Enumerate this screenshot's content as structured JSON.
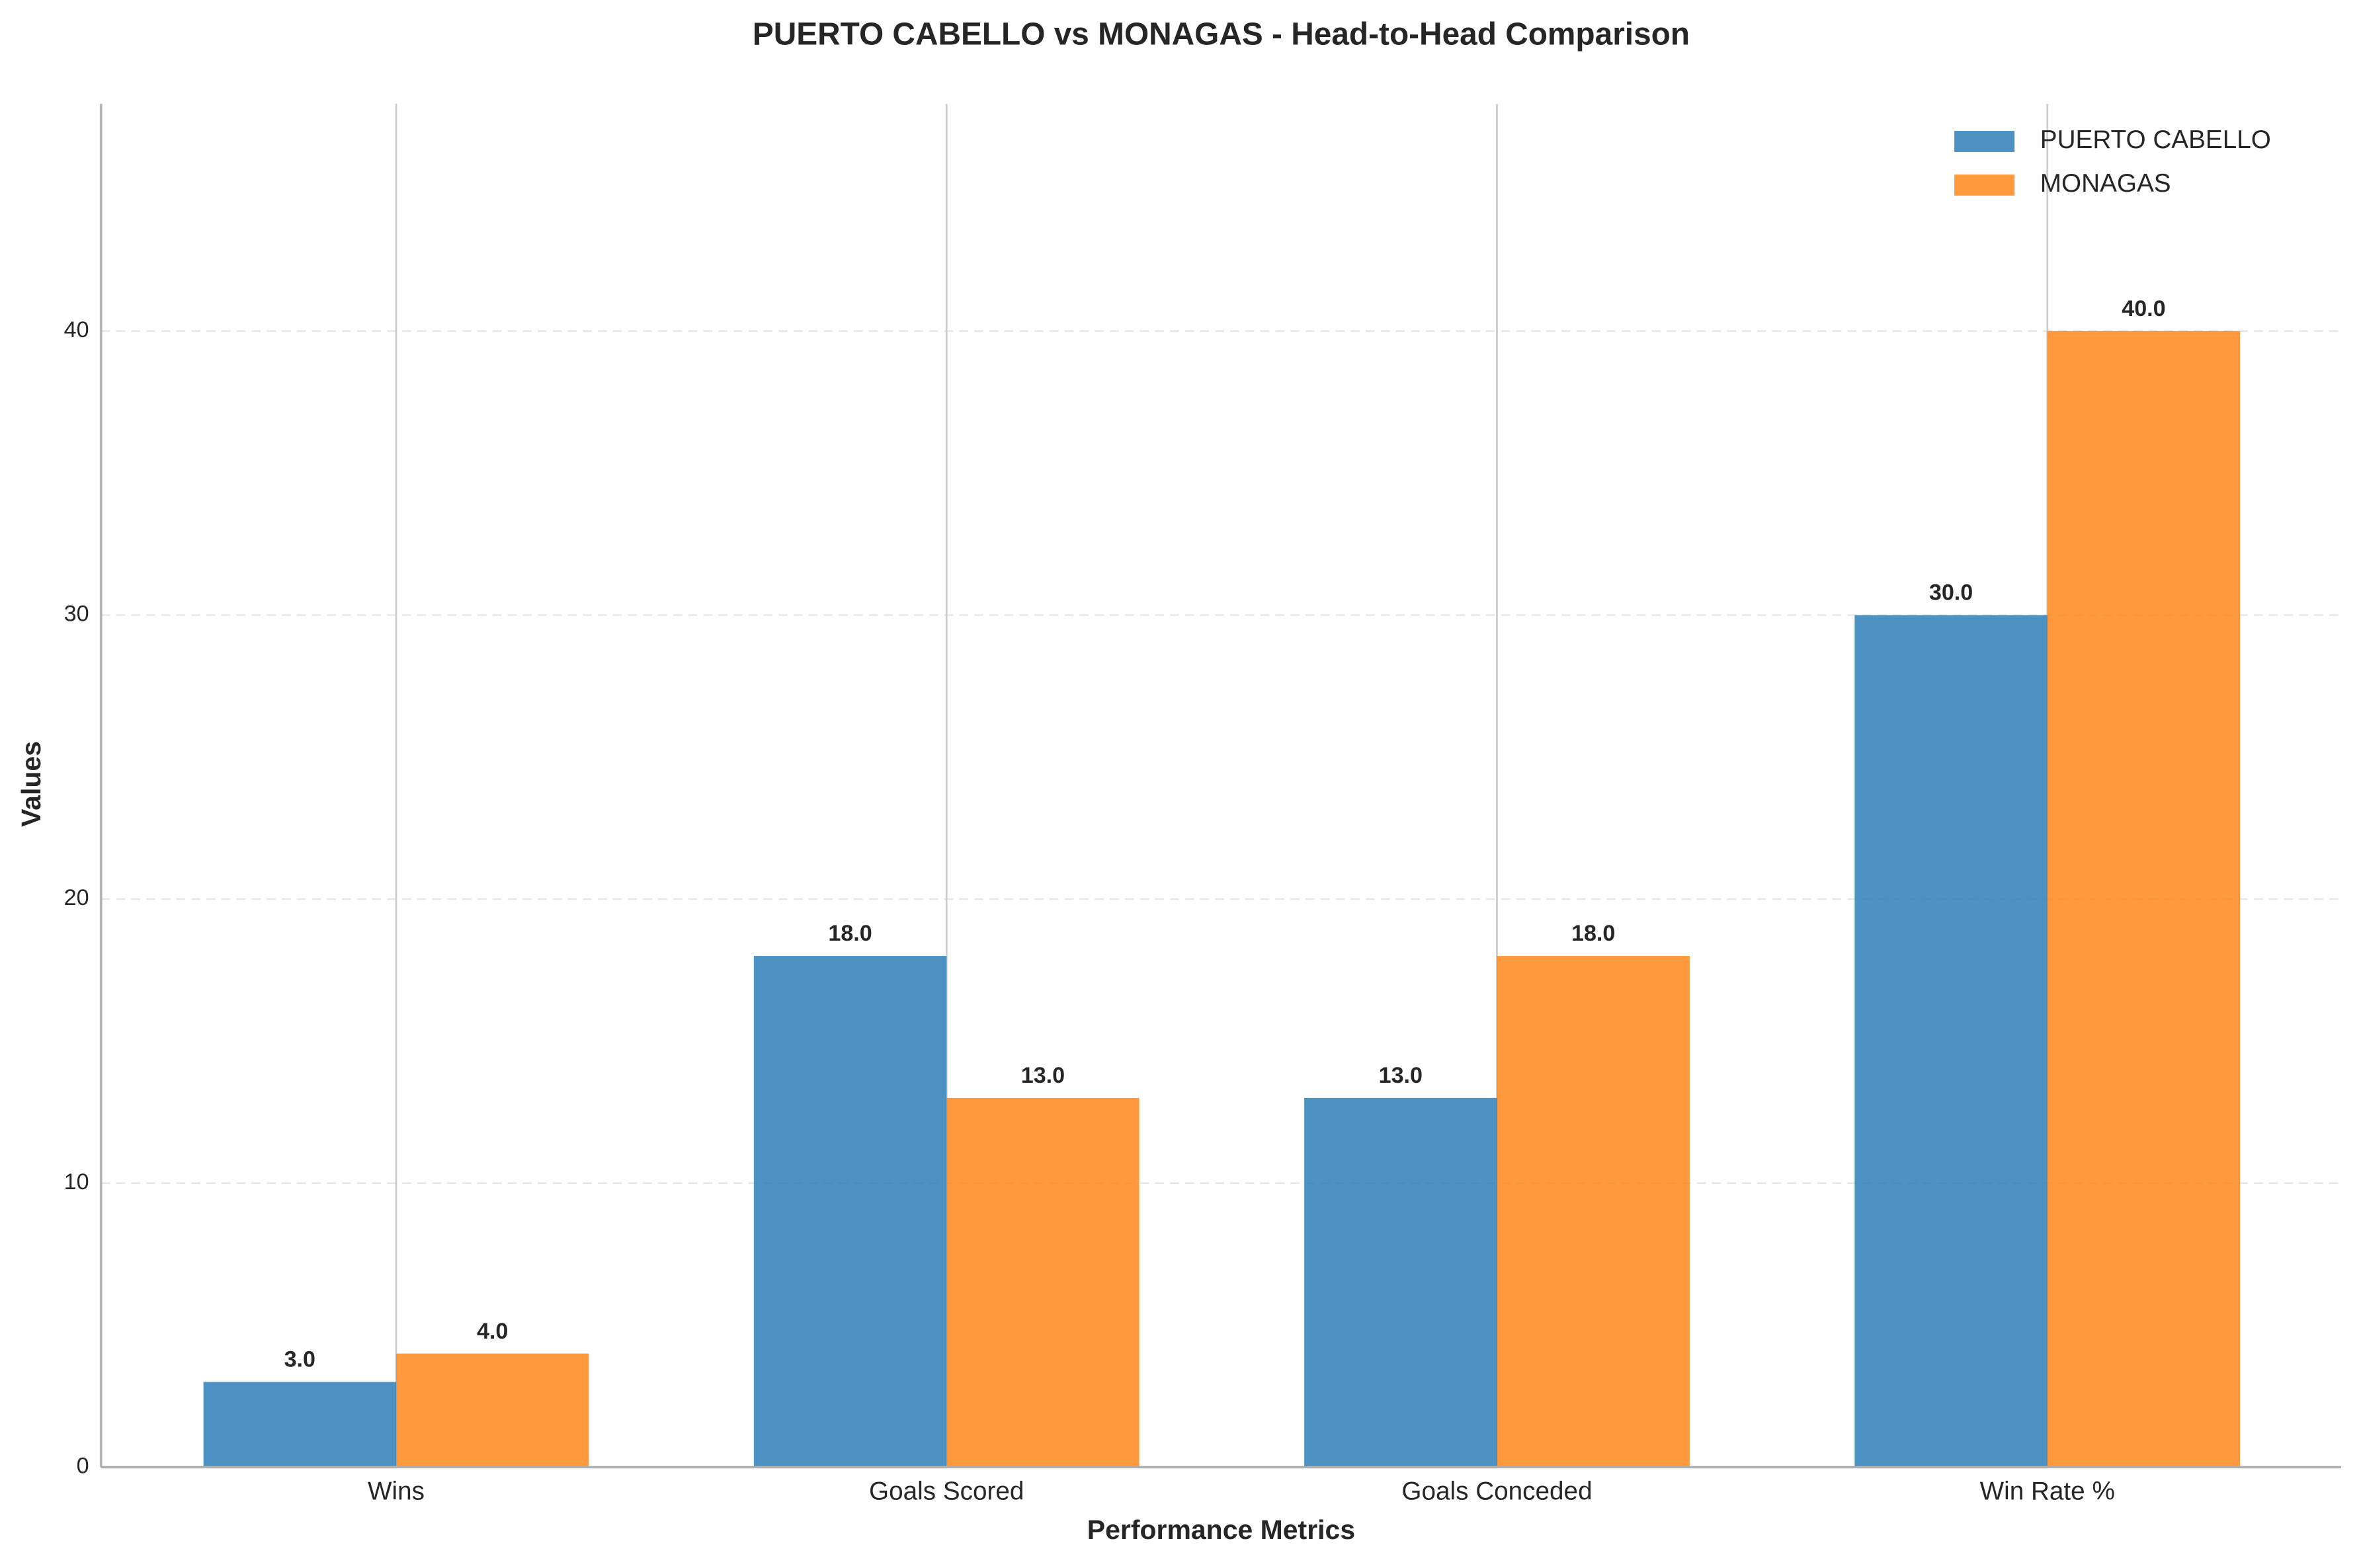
{
  "chart_data": {
    "type": "bar",
    "title": "PUERTO CABELLO vs MONAGAS - Head-to-Head Comparison",
    "x_label": "Performance Metrics",
    "y_label": "Values",
    "categories": [
      "Wins",
      "Goals Scored",
      "Goals Conceded",
      "Win Rate %"
    ],
    "series": [
      {
        "name": "PUERTO CABELLO",
        "color": "#1f77b4",
        "values": [
          3,
          18,
          13,
          30
        ],
        "value_labels": [
          "3.0",
          "18.0",
          "13.0",
          "30.0"
        ]
      },
      {
        "name": "MONAGAS",
        "color": "#ff7f0e",
        "values": [
          4,
          13,
          18,
          40
        ],
        "value_labels": [
          "4.0",
          "13.0",
          "18.0",
          "40.0"
        ]
      }
    ],
    "ylim": [
      0,
      48
    ],
    "yticks": [
      0,
      10,
      20,
      30,
      40
    ],
    "grid": true,
    "legend": "upper right"
  }
}
